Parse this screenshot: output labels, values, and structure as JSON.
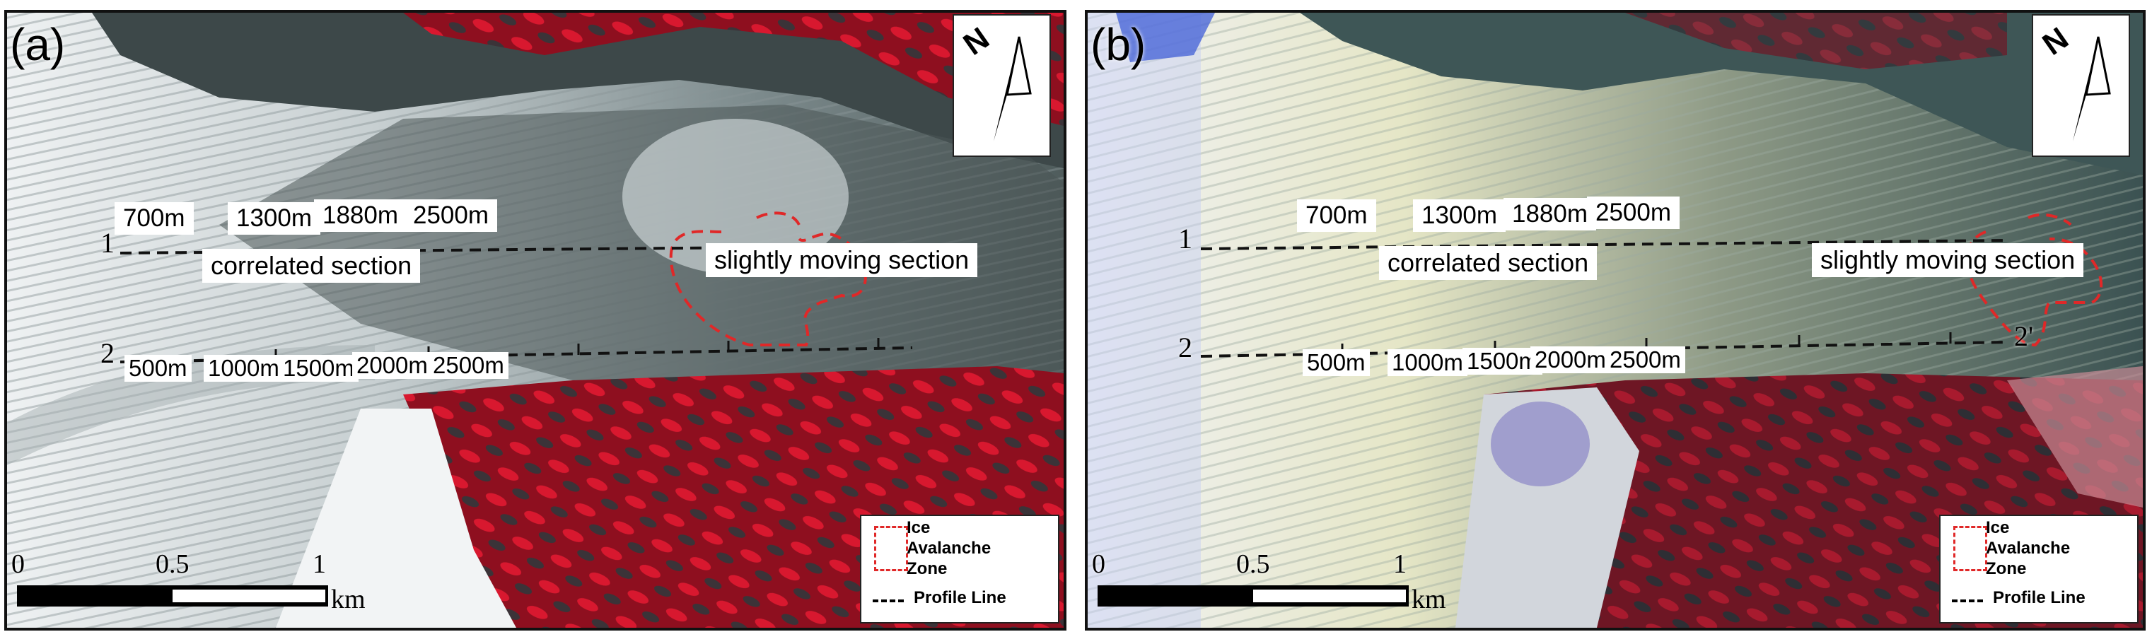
{
  "panels": [
    {
      "letter": "(a)",
      "north": "N",
      "profiles": {
        "p1": "1",
        "p2": "2"
      },
      "profile1_labels": [
        "700m",
        "1300m",
        "1880m",
        "2500m"
      ],
      "profile2_labels": [
        "500m",
        "1000m",
        "1500m",
        "2000m",
        "2500m"
      ],
      "sections": {
        "correlated": "correlated section",
        "moving": "slightly moving section"
      },
      "legend": {
        "zone": "Ice\nAvalanche\nZone",
        "profile": "Profile Line"
      },
      "scale": {
        "ticks": [
          "0",
          "0.5",
          "1"
        ],
        "unit": "km"
      }
    },
    {
      "letter": "(b)",
      "north": "N",
      "profiles": {
        "p1": "1",
        "p2": "2",
        "p2_end": "2'"
      },
      "profile1_labels": [
        "700m",
        "1300m",
        "1880m",
        "2500m"
      ],
      "profile2_labels": [
        "500m",
        "1000m",
        "1500m",
        "2000m",
        "2500m"
      ],
      "sections": {
        "correlated": "correlated section",
        "moving": "slightly moving section"
      },
      "legend": {
        "zone": "Ice\nAvalanche\nZone",
        "profile": "Profile Line"
      },
      "scale": {
        "ticks": [
          "0",
          "0.5",
          "1"
        ],
        "unit": "km"
      }
    }
  ],
  "colors": {
    "vegetation_red": "#c4162a",
    "ice": "#d6dde0",
    "debris": "#3a4a4a",
    "avalanche_outline": "#e02828"
  }
}
